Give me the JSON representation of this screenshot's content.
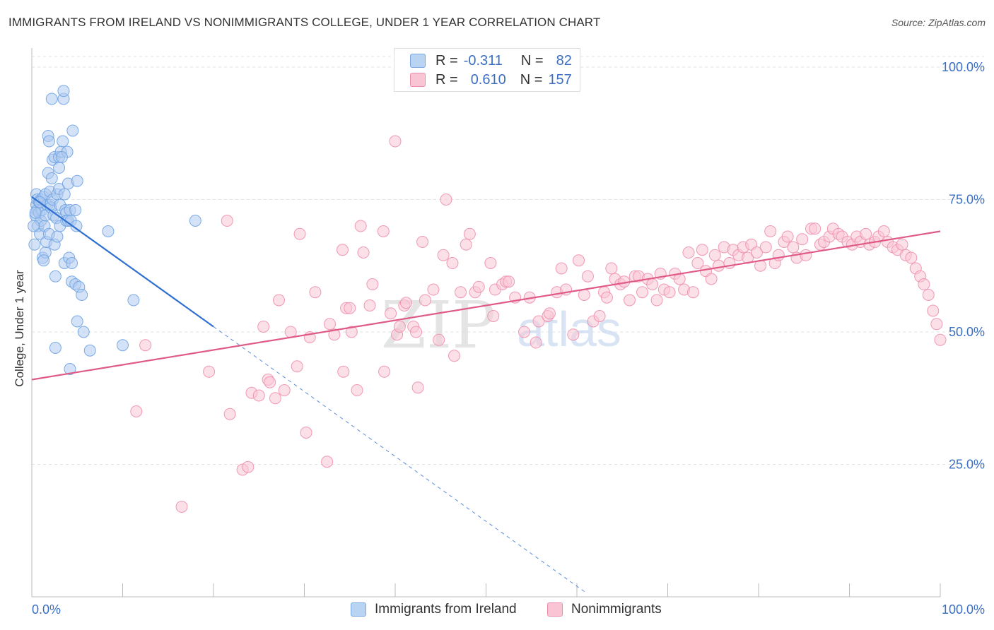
{
  "title": "IMMIGRANTS FROM IRELAND VS NONIMMIGRANTS COLLEGE, UNDER 1 YEAR CORRELATION CHART",
  "source": "Source: ZipAtlas.com",
  "watermark": {
    "zip": "ZIP",
    "atlas": "atlas"
  },
  "stats": [
    {
      "r_label": "R =",
      "r_value": "-0.311",
      "n_label": "N =",
      "n_value": "82"
    },
    {
      "r_label": "R =",
      "r_value": "0.610",
      "n_label": "N =",
      "n_value": "157"
    }
  ],
  "legend": [
    {
      "label": "Immigrants from Ireland",
      "color": "#6fa3e2"
    },
    {
      "label": "Nonimmigrants",
      "color": "#ee8fae"
    }
  ],
  "colors": {
    "blue_line": "#2f6fd0",
    "pink_line": "#e05a88",
    "axis_text": "#3b6fc4",
    "grid": "#e3e3e3"
  },
  "chart_data": {
    "type": "scatter",
    "xlabel": "",
    "ylabel": "College, Under 1 year",
    "xlim": [
      0,
      100
    ],
    "ylim": [
      0,
      102
    ],
    "x_tick_labels": [
      "0.0%",
      "100.0%"
    ],
    "y_ticks": [
      25,
      50,
      75,
      100
    ],
    "y_tick_labels": [
      "25.0%",
      "50.0%",
      "75.0%",
      "100.0%"
    ],
    "series": [
      {
        "name": "Immigrants from Ireland",
        "trend": {
          "x0": 0,
          "y0": 75.5,
          "x1": 20,
          "y1": 51,
          "dash_to_x": 61
        },
        "points": [
          [
            0.3,
            66.5
          ],
          [
            0.4,
            72
          ],
          [
            0.5,
            76
          ],
          [
            0.5,
            74
          ],
          [
            0.6,
            75
          ],
          [
            0.6,
            73
          ],
          [
            0.7,
            70
          ],
          [
            0.8,
            74.5
          ],
          [
            0.8,
            72.5
          ],
          [
            0.9,
            68.5
          ],
          [
            1.0,
            75
          ],
          [
            1.0,
            71
          ],
          [
            1.1,
            73
          ],
          [
            1.2,
            64
          ],
          [
            1.3,
            75.5
          ],
          [
            1.4,
            70
          ],
          [
            1.5,
            76
          ],
          [
            1.5,
            72
          ],
          [
            1.5,
            65
          ],
          [
            1.6,
            67
          ],
          [
            1.7,
            74
          ],
          [
            1.8,
            80
          ],
          [
            1.8,
            87
          ],
          [
            1.9,
            86
          ],
          [
            1.9,
            68.5
          ],
          [
            2.0,
            76.5
          ],
          [
            2.0,
            74
          ],
          [
            2.1,
            73.5
          ],
          [
            2.2,
            94
          ],
          [
            2.3,
            82.5
          ],
          [
            2.3,
            75
          ],
          [
            2.4,
            72
          ],
          [
            2.5,
            83
          ],
          [
            2.5,
            66.5
          ],
          [
            2.6,
            60.5
          ],
          [
            2.6,
            47
          ],
          [
            2.7,
            71.5
          ],
          [
            2.8,
            76
          ],
          [
            2.8,
            68
          ],
          [
            3.0,
            83
          ],
          [
            3.0,
            81
          ],
          [
            3.0,
            77
          ],
          [
            3.1,
            74
          ],
          [
            3.1,
            70
          ],
          [
            3.2,
            84
          ],
          [
            3.4,
            86
          ],
          [
            3.5,
            94
          ],
          [
            3.5,
            95.5
          ],
          [
            3.6,
            76
          ],
          [
            3.6,
            63
          ],
          [
            3.7,
            73
          ],
          [
            3.8,
            72.5
          ],
          [
            3.8,
            71
          ],
          [
            3.9,
            84
          ],
          [
            4.0,
            71
          ],
          [
            4.0,
            78
          ],
          [
            4.1,
            64
          ],
          [
            4.2,
            73
          ],
          [
            4.2,
            43
          ],
          [
            4.3,
            71
          ],
          [
            4.4,
            63
          ],
          [
            4.4,
            59.5
          ],
          [
            4.5,
            88
          ],
          [
            4.8,
            59
          ],
          [
            4.8,
            73
          ],
          [
            4.9,
            70
          ],
          [
            5.0,
            52
          ],
          [
            5.0,
            78.5
          ],
          [
            5.2,
            58.5
          ],
          [
            5.5,
            57
          ],
          [
            5.7,
            50
          ],
          [
            6.4,
            46.5
          ],
          [
            8.4,
            69
          ],
          [
            10,
            47.5
          ],
          [
            11.2,
            56
          ],
          [
            18.0,
            71
          ],
          [
            0.2,
            70
          ],
          [
            0.4,
            72.5
          ],
          [
            0.9,
            74.5
          ],
          [
            1.3,
            63.5
          ],
          [
            2.2,
            79
          ],
          [
            3.3,
            83
          ]
        ]
      },
      {
        "name": "Nonimmigrants",
        "trend": {
          "x0": 0,
          "y0": 41,
          "x1": 100,
          "y1": 69
        },
        "points": [
          [
            11.5,
            35
          ],
          [
            12.5,
            47.5
          ],
          [
            16.5,
            17
          ],
          [
            19.5,
            42.5
          ],
          [
            21.5,
            71
          ],
          [
            21.8,
            34.5
          ],
          [
            23.2,
            24
          ],
          [
            23.8,
            24.5
          ],
          [
            24.2,
            38.5
          ],
          [
            25.0,
            38
          ],
          [
            25.5,
            51
          ],
          [
            26.0,
            41
          ],
          [
            26.2,
            40.5
          ],
          [
            26.8,
            37.5
          ],
          [
            27.2,
            56
          ],
          [
            27.8,
            39
          ],
          [
            28.5,
            50
          ],
          [
            29.2,
            43.5
          ],
          [
            29.5,
            68.5
          ],
          [
            30.2,
            31
          ],
          [
            30.6,
            49
          ],
          [
            31.2,
            57.5
          ],
          [
            32.5,
            25.5
          ],
          [
            32.8,
            51.5
          ],
          [
            33.3,
            49.5
          ],
          [
            34.2,
            65.5
          ],
          [
            34.3,
            42.5
          ],
          [
            34.6,
            54.5
          ],
          [
            35.0,
            54.5
          ],
          [
            35.2,
            50
          ],
          [
            35.8,
            39
          ],
          [
            36.2,
            70
          ],
          [
            36.5,
            65
          ],
          [
            37.2,
            55
          ],
          [
            37.5,
            59
          ],
          [
            38.7,
            69
          ],
          [
            38.8,
            42.5
          ],
          [
            39.5,
            53.5
          ],
          [
            40.0,
            86
          ],
          [
            40.2,
            49.5
          ],
          [
            40.5,
            51
          ],
          [
            41.0,
            55
          ],
          [
            41.2,
            55.5
          ],
          [
            42.0,
            51
          ],
          [
            42.3,
            50
          ],
          [
            42.5,
            39.5
          ],
          [
            43.0,
            67
          ],
          [
            43.3,
            56
          ],
          [
            44.2,
            58
          ],
          [
            44.8,
            48.5
          ],
          [
            45.3,
            64.5
          ],
          [
            45.6,
            75
          ],
          [
            46.3,
            63
          ],
          [
            46.5,
            45.5
          ],
          [
            47.2,
            57.5
          ],
          [
            47.8,
            66.5
          ],
          [
            48.2,
            68.5
          ],
          [
            48.8,
            57.5
          ],
          [
            49.2,
            58.5
          ],
          [
            50.5,
            63
          ],
          [
            50.8,
            53
          ],
          [
            51.0,
            58
          ],
          [
            51.8,
            59
          ],
          [
            52.2,
            59.5
          ],
          [
            52.5,
            59.5
          ],
          [
            53.2,
            56.5
          ],
          [
            54.8,
            56.5
          ],
          [
            54.2,
            50
          ],
          [
            55.5,
            48
          ],
          [
            55.8,
            52
          ],
          [
            56.8,
            53
          ],
          [
            57.0,
            53.5
          ],
          [
            57.8,
            57.5
          ],
          [
            58.3,
            62
          ],
          [
            58.8,
            58
          ],
          [
            59.6,
            49.5
          ],
          [
            60.2,
            63.5
          ],
          [
            60.8,
            57
          ],
          [
            61.2,
            60.5
          ],
          [
            61.8,
            52
          ],
          [
            62.5,
            53
          ],
          [
            63.0,
            57.5
          ],
          [
            63.3,
            56.5
          ],
          [
            63.8,
            62
          ],
          [
            64.2,
            60
          ],
          [
            64.8,
            59
          ],
          [
            65.2,
            59.5
          ],
          [
            65.8,
            56
          ],
          [
            66.4,
            60.5
          ],
          [
            66.8,
            60.5
          ],
          [
            67.2,
            57.5
          ],
          [
            67.8,
            60
          ],
          [
            68.3,
            59
          ],
          [
            68.8,
            56
          ],
          [
            69.2,
            61
          ],
          [
            69.6,
            58
          ],
          [
            70.2,
            57.5
          ],
          [
            70.8,
            61
          ],
          [
            71.3,
            60
          ],
          [
            71.8,
            58
          ],
          [
            72.3,
            65
          ],
          [
            72.8,
            57.5
          ],
          [
            73.3,
            63
          ],
          [
            73.8,
            65.5
          ],
          [
            74.2,
            61.5
          ],
          [
            74.8,
            60
          ],
          [
            75.2,
            64.5
          ],
          [
            75.6,
            62.5
          ],
          [
            76.2,
            66
          ],
          [
            76.8,
            63
          ],
          [
            77.2,
            65.5
          ],
          [
            77.8,
            64.5
          ],
          [
            78.3,
            66
          ],
          [
            78.8,
            64
          ],
          [
            79.2,
            66.5
          ],
          [
            79.8,
            65
          ],
          [
            80.2,
            62.5
          ],
          [
            80.8,
            66
          ],
          [
            81.3,
            69
          ],
          [
            81.8,
            63
          ],
          [
            82.2,
            64.5
          ],
          [
            82.8,
            67
          ],
          [
            83.2,
            68
          ],
          [
            83.8,
            66
          ],
          [
            84.2,
            64
          ],
          [
            84.8,
            67.5
          ],
          [
            85.2,
            64.5
          ],
          [
            85.8,
            69.5
          ],
          [
            86.2,
            69.5
          ],
          [
            86.8,
            66.5
          ],
          [
            87.2,
            67
          ],
          [
            87.8,
            68
          ],
          [
            88.2,
            69.5
          ],
          [
            88.8,
            68.5
          ],
          [
            89.2,
            68
          ],
          [
            89.8,
            67
          ],
          [
            90.3,
            66.5
          ],
          [
            90.8,
            68
          ],
          [
            91.2,
            67
          ],
          [
            91.8,
            68.5
          ],
          [
            92.2,
            66.5
          ],
          [
            92.8,
            67
          ],
          [
            93.2,
            68
          ],
          [
            93.8,
            69
          ],
          [
            94.2,
            67
          ],
          [
            94.8,
            66
          ],
          [
            95.3,
            65.5
          ],
          [
            95.8,
            66.5
          ],
          [
            96.2,
            64.5
          ],
          [
            96.8,
            64
          ],
          [
            97.3,
            62
          ],
          [
            97.8,
            60.5
          ],
          [
            98.2,
            59
          ],
          [
            98.7,
            57
          ],
          [
            99.2,
            54
          ],
          [
            99.6,
            51.5
          ],
          [
            100.0,
            48.5
          ]
        ]
      }
    ]
  }
}
